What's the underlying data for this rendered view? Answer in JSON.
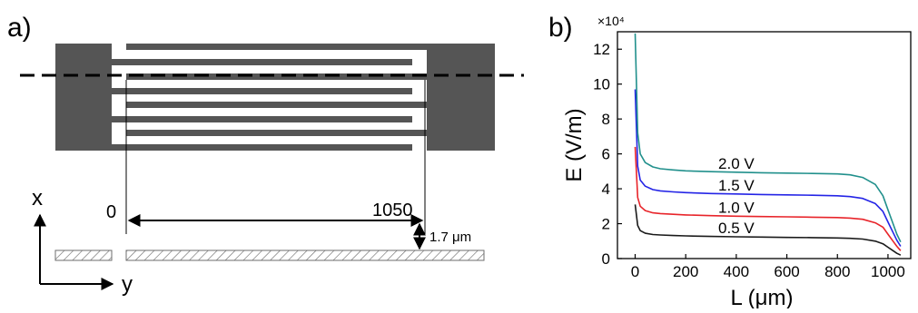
{
  "panel_a": {
    "label": "a)",
    "dimension_start": "0",
    "dimension_end": "1050",
    "gap_label": "1.7 μm",
    "axis_x": "x",
    "axis_y": "y"
  },
  "panel_b": {
    "label": "b)"
  },
  "colors": {
    "electrode": "#555555",
    "hatch": "#6e6e6e",
    "series_0_5": "#1a1a1a",
    "series_1_0": "#e8242a",
    "series_1_5": "#2424e6",
    "series_2_0": "#21908c"
  },
  "chart_data": {
    "type": "line",
    "xlabel": "L (μm)",
    "ylabel": "E (V/m)",
    "y_multiplier": "×10⁴",
    "xlim": [
      -70,
      1090
    ],
    "ylim": [
      0,
      13
    ],
    "xticks": [
      0,
      200,
      400,
      600,
      800,
      1000
    ],
    "yticks": [
      0,
      2,
      4,
      6,
      8,
      10,
      12
    ],
    "grid": false,
    "series": [
      {
        "name": "0.5 V",
        "color": "#1a1a1a",
        "x": [
          0,
          10,
          20,
          40,
          70,
          100,
          150,
          200,
          300,
          400,
          500,
          600,
          700,
          800,
          850,
          900,
          950,
          980,
          1000,
          1020,
          1035,
          1050
        ],
        "y": [
          3.1,
          1.9,
          1.6,
          1.45,
          1.38,
          1.35,
          1.32,
          1.3,
          1.27,
          1.25,
          1.23,
          1.21,
          1.2,
          1.18,
          1.16,
          1.12,
          1.0,
          0.85,
          0.65,
          0.45,
          0.3,
          0.2
        ]
      },
      {
        "name": "1.0 V",
        "color": "#e8242a",
        "x": [
          0,
          10,
          20,
          40,
          70,
          100,
          150,
          200,
          300,
          400,
          500,
          600,
          700,
          800,
          850,
          900,
          950,
          980,
          1000,
          1020,
          1035,
          1050
        ],
        "y": [
          6.4,
          3.5,
          3.0,
          2.75,
          2.62,
          2.58,
          2.54,
          2.5,
          2.46,
          2.43,
          2.41,
          2.39,
          2.37,
          2.35,
          2.32,
          2.25,
          2.05,
          1.8,
          1.4,
          1.0,
          0.7,
          0.45
        ]
      },
      {
        "name": "1.5 V",
        "color": "#2424e6",
        "x": [
          0,
          10,
          20,
          40,
          70,
          100,
          150,
          200,
          300,
          400,
          500,
          600,
          700,
          800,
          850,
          900,
          950,
          980,
          1000,
          1020,
          1035,
          1050
        ],
        "y": [
          9.7,
          5.3,
          4.5,
          4.15,
          3.95,
          3.88,
          3.82,
          3.78,
          3.73,
          3.7,
          3.67,
          3.65,
          3.63,
          3.6,
          3.55,
          3.45,
          3.15,
          2.7,
          2.1,
          1.5,
          1.05,
          0.7
        ]
      },
      {
        "name": "2.0 V",
        "color": "#21908c",
        "x": [
          0,
          10,
          20,
          40,
          70,
          100,
          150,
          200,
          300,
          400,
          500,
          600,
          700,
          800,
          850,
          900,
          950,
          980,
          1000,
          1020,
          1035,
          1050
        ],
        "y": [
          12.9,
          7.2,
          6.0,
          5.5,
          5.25,
          5.15,
          5.08,
          5.03,
          4.98,
          4.95,
          4.92,
          4.9,
          4.88,
          4.85,
          4.8,
          4.65,
          4.25,
          3.6,
          2.8,
          2.0,
          1.4,
          0.95
        ]
      }
    ],
    "annotations": [
      "2.0 V",
      "1.5 V",
      "1.0 V",
      "0.5 V"
    ]
  }
}
